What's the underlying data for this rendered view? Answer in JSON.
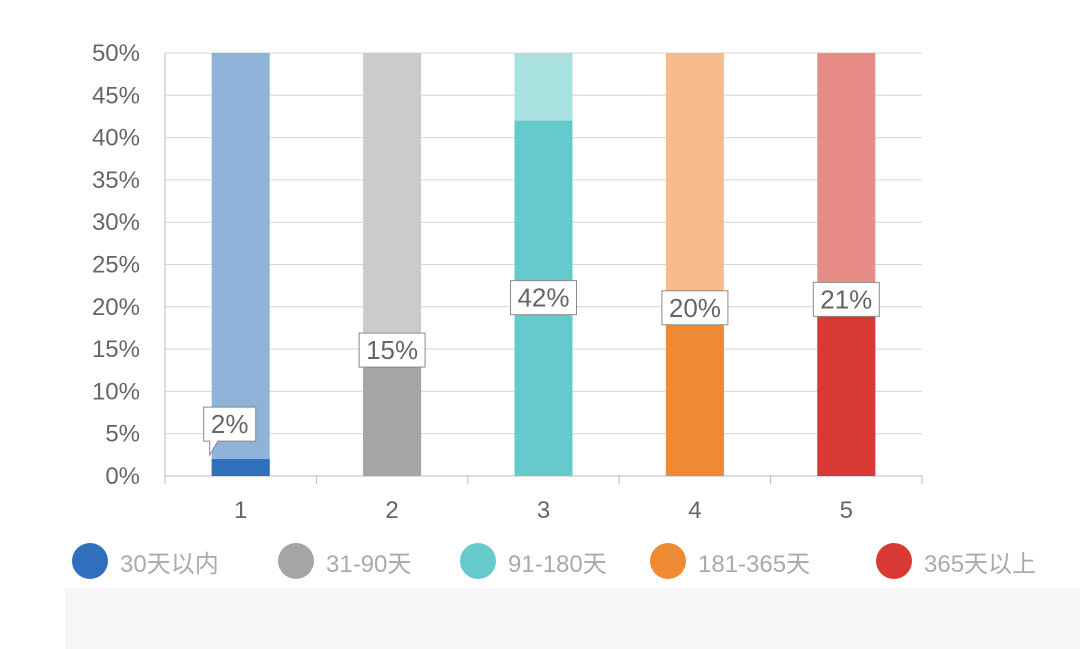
{
  "chart_data": {
    "type": "bar",
    "categories": [
      "1",
      "2",
      "3",
      "4",
      "5"
    ],
    "values": [
      2,
      15,
      42,
      20,
      21
    ],
    "background_total": 50,
    "ylim": [
      0,
      50
    ],
    "yticks": [
      "0%",
      "5%",
      "10%",
      "15%",
      "20%",
      "25%",
      "30%",
      "35%",
      "40%",
      "45%",
      "50%"
    ],
    "data_labels": [
      "2%",
      "15%",
      "42%",
      "20%",
      "21%"
    ],
    "colors": [
      "#2f6fbb",
      "#a5a5a5",
      "#66c9cc",
      "#ee8a33",
      "#d93933"
    ],
    "light_colors": [
      "#8eb2d8",
      "#cbcbcb",
      "#a9e0e0",
      "#f6bb88",
      "#e88c87"
    ],
    "grid": true,
    "legend_position": "bottom",
    "title": "",
    "xlabel": "",
    "ylabel": ""
  },
  "legend": [
    {
      "label": "30天以内",
      "color": "#2f6fbb"
    },
    {
      "label": "31-90天",
      "color": "#a5a5a5"
    },
    {
      "label": "91-180天",
      "color": "#66c9cc"
    },
    {
      "label": "181-365天",
      "color": "#ee8a33"
    },
    {
      "label": "365天以上",
      "color": "#d93933"
    }
  ]
}
